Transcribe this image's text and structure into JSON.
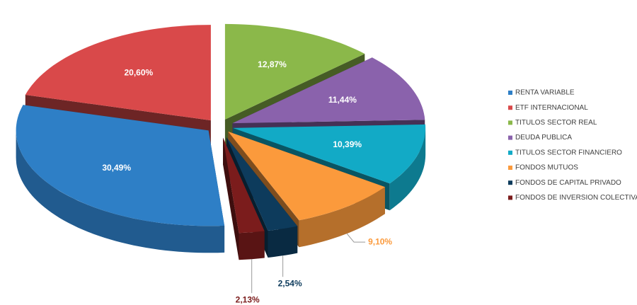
{
  "chart_data": {
    "type": "pie",
    "categories": [
      "RENTA VARIABLE",
      "ETF INTERNACIONAL",
      "TITULOS SECTOR REAL",
      "DEUDA PUBLICA",
      "TITULOS SECTOR FINANCIERO",
      "FONDOS MUTUOS",
      "FONDOS DE CAPITAL PRIVADO",
      "FONDOS DE INVERSION COLECTIVA"
    ],
    "values": [
      30.49,
      20.6,
      12.87,
      11.44,
      10.39,
      9.1,
      2.54,
      2.13
    ],
    "value_labels": [
      "30,49%",
      "20,60%",
      "12,87%",
      "11,44%",
      "10,39%",
      "9,10%",
      "2,54%",
      "2,13%"
    ],
    "colors": [
      "#2e7fc6",
      "#d9494a",
      "#8bb84a",
      "#8a62ac",
      "#12aac6",
      "#fb9a3c",
      "#0d3b5c",
      "#7b1c1c"
    ],
    "legend": "right"
  }
}
